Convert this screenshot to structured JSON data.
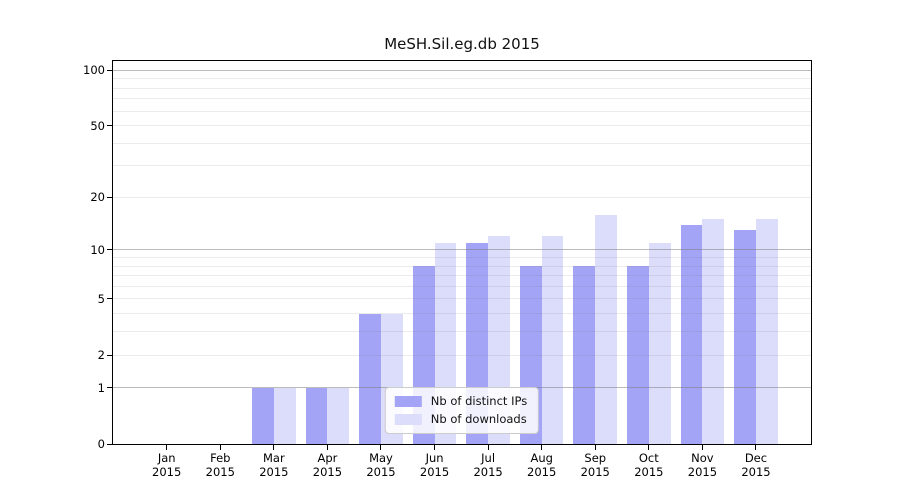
{
  "chart_data": {
    "type": "bar",
    "title": "MeSH.Sil.eg.db 2015",
    "categories": [
      "Jan",
      "Feb",
      "Mar",
      "Apr",
      "May",
      "Jun",
      "Jul",
      "Aug",
      "Sep",
      "Oct",
      "Nov",
      "Dec"
    ],
    "x_tick_sublabel": "2015",
    "series": [
      {
        "name": "Nb of distinct IPs",
        "key": "distinct-ips",
        "color": "#a4a4f6",
        "values": [
          0,
          0,
          1,
          1,
          4,
          8,
          11,
          8,
          8,
          8,
          14,
          13
        ]
      },
      {
        "name": "Nb of downloads",
        "key": "downloads",
        "color": "#dcdcfb",
        "values": [
          0,
          0,
          1,
          1,
          4,
          11,
          12,
          12,
          16,
          11,
          15,
          15
        ]
      }
    ],
    "y_axis": {
      "scale": "log1p",
      "ticks": [
        0,
        1,
        2,
        5,
        10,
        20,
        50,
        100
      ],
      "major_gridlines": [
        1,
        10,
        100
      ],
      "minor_gridlines": [
        2,
        3,
        4,
        5,
        6,
        7,
        8,
        9,
        20,
        30,
        40,
        50,
        60,
        70,
        80,
        90
      ],
      "max": 100
    },
    "legend": {
      "position": "lower center",
      "items": [
        "Nb of distinct IPs",
        "Nb of downloads"
      ]
    },
    "grid": true,
    "xlabel": "",
    "ylabel": ""
  },
  "colors": {
    "background": "#ffffff",
    "spine": "#000000",
    "major_grid": "#9e9e9e",
    "minor_grid": "#e8e8e8",
    "text": "#111111",
    "legend_border": "#cccccc"
  }
}
